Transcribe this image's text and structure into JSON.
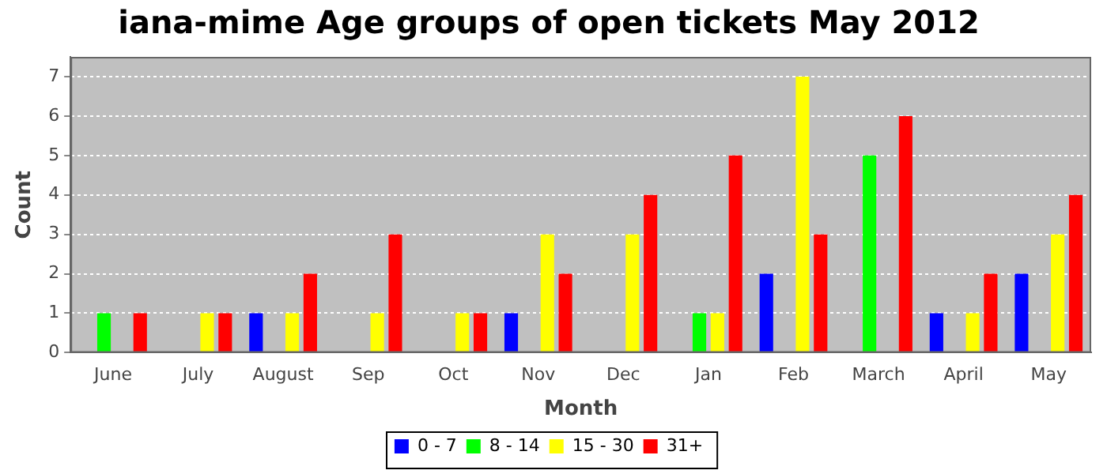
{
  "chart_data": {
    "type": "bar",
    "title": "iana-mime Age groups of open tickets May 2012",
    "xlabel": "Month",
    "ylabel": "Count",
    "categories": [
      "June",
      "July",
      "August",
      "Sep",
      "Oct",
      "Nov",
      "Dec",
      "Jan",
      "Feb",
      "March",
      "April",
      "May"
    ],
    "series": [
      {
        "name": "0 - 7",
        "color": "#0000ff",
        "values": [
          0,
          0,
          1,
          0,
          0,
          1,
          0,
          0,
          2,
          0,
          1,
          2
        ]
      },
      {
        "name": "8 - 14",
        "color": "#00ff00",
        "values": [
          1,
          0,
          0,
          0,
          0,
          0,
          0,
          1,
          0,
          5,
          0,
          0
        ]
      },
      {
        "name": "15 - 30",
        "color": "#ffff00",
        "values": [
          0,
          1,
          1,
          1,
          1,
          3,
          3,
          1,
          7,
          0,
          1,
          3
        ]
      },
      {
        "name": "31+",
        "color": "#ff0000",
        "values": [
          1,
          1,
          2,
          3,
          1,
          2,
          4,
          5,
          3,
          6,
          2,
          4
        ]
      }
    ],
    "ylim": [
      0,
      7.5
    ],
    "yticks": [
      0,
      1,
      2,
      3,
      4,
      5,
      6,
      7
    ],
    "grid": "y",
    "legend": "bottom"
  }
}
